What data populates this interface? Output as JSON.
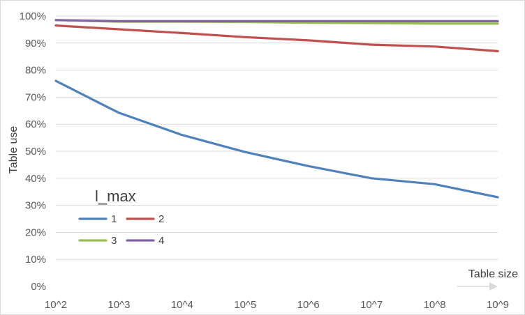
{
  "chart_data": {
    "type": "line",
    "xlabel": "Table size",
    "ylabel": "Table use",
    "categories": [
      "10^2",
      "10^3",
      "10^4",
      "10^5",
      "10^6",
      "10^7",
      "10^8",
      "10^9"
    ],
    "ylim": [
      0,
      100
    ],
    "yticks": [
      "0%",
      "10%",
      "20%",
      "30%",
      "40%",
      "50%",
      "60%",
      "70%",
      "80%",
      "90%",
      "100%"
    ],
    "grid": true,
    "legend_title": "l_max",
    "legend_position": "lower-left",
    "series": [
      {
        "name": "1",
        "color": "#4f81bd",
        "values": [
          76,
          64.2,
          56,
          49.7,
          44.5,
          40,
          37.8,
          33
        ]
      },
      {
        "name": "2",
        "color": "#c0504d",
        "values": [
          96.5,
          95.1,
          93.7,
          92.2,
          91,
          89.4,
          88.7,
          87
        ]
      },
      {
        "name": "3",
        "color": "#9bbb59",
        "values": [
          98.5,
          97.9,
          97.9,
          97.8,
          97.5,
          97.4,
          97.2,
          97.2
        ]
      },
      {
        "name": "4",
        "color": "#8064a2",
        "values": [
          98.5,
          98.1,
          98.1,
          98.1,
          98.1,
          98.1,
          98.1,
          98.1
        ]
      }
    ]
  }
}
